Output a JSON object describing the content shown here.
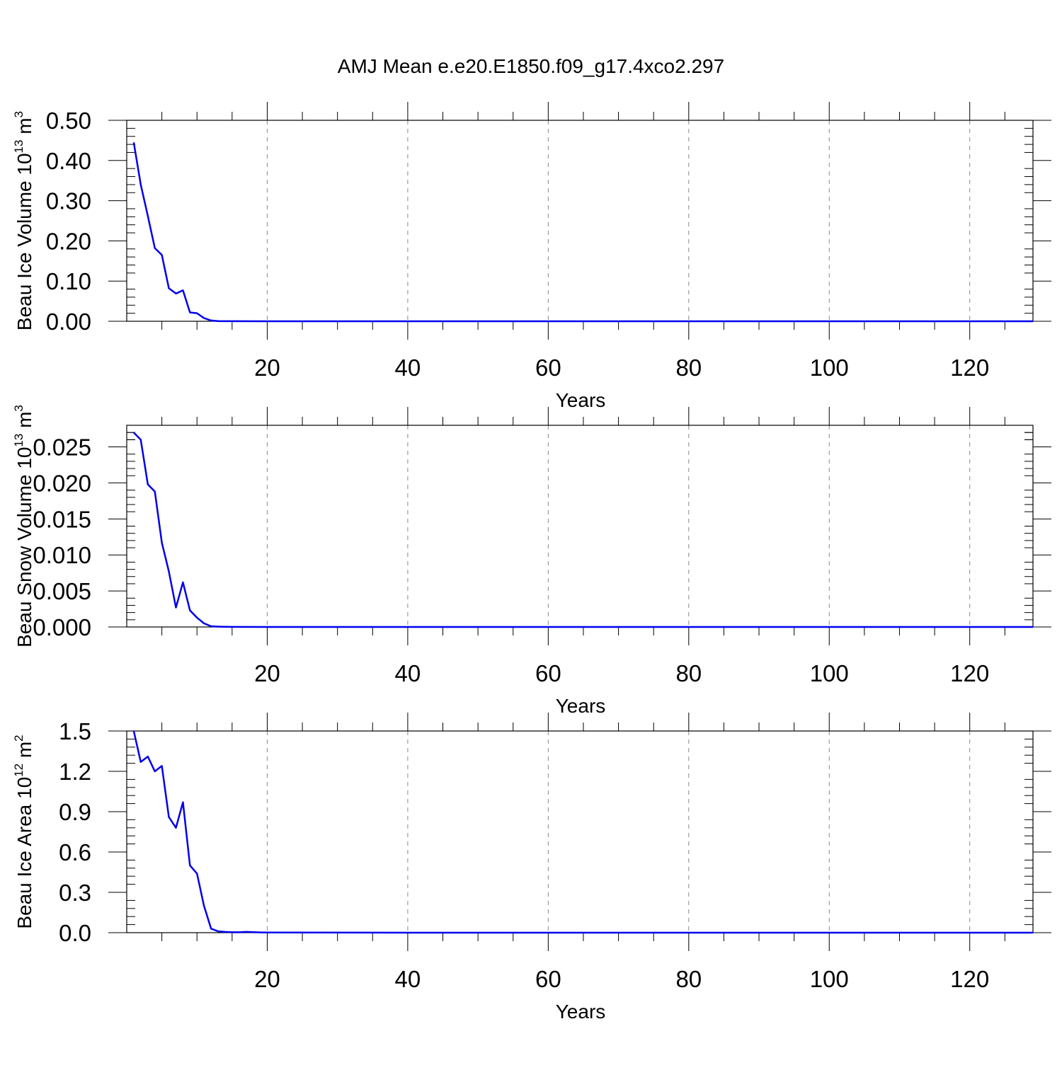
{
  "page_title": "AMJ Mean e.e20.E1850.f09_g17.4xco2.297",
  "chart_data": [
    {
      "type": "line",
      "xlabel": "Years",
      "ylabel_main": "Beau Ice Volume 10",
      "ylabel_exp": "13",
      "ylabel_unit": " m",
      "ylabel_unit_exp": "3",
      "xlim": [
        0,
        129
      ],
      "ylim": [
        0,
        0.5
      ],
      "x_ticks": [
        20,
        40,
        60,
        80,
        100,
        120
      ],
      "y_ticks": [
        "0.00",
        "0.10",
        "0.20",
        "0.30",
        "0.40",
        "0.50"
      ],
      "line_color": "#0000ee",
      "grid": "vertical dashed",
      "series": [
        {
          "x": [
            1,
            2,
            3,
            4,
            5,
            6,
            7,
            8,
            9,
            10,
            11,
            12,
            13,
            14,
            15,
            20,
            40,
            60,
            80,
            100,
            120,
            129
          ],
          "values": [
            0.445,
            0.34,
            0.262,
            0.182,
            0.165,
            0.082,
            0.069,
            0.077,
            0.022,
            0.02,
            0.008,
            0.002,
            0.0005,
            0.0002,
            0.0001,
            0,
            0,
            0,
            0,
            0,
            0,
            0
          ]
        }
      ]
    },
    {
      "type": "line",
      "xlabel": "Years",
      "ylabel_main": "Beau Snow Volume 10",
      "ylabel_exp": "13",
      "ylabel_unit": " m",
      "ylabel_unit_exp": "3",
      "xlim": [
        0,
        129
      ],
      "ylim": [
        0,
        0.028
      ],
      "x_ticks": [
        20,
        40,
        60,
        80,
        100,
        120
      ],
      "y_ticks": [
        "0.000",
        "0.005",
        "0.010",
        "0.015",
        "0.020",
        "0.025"
      ],
      "line_color": "#0000ee",
      "grid": "vertical dashed",
      "series": [
        {
          "x": [
            1,
            2,
            3,
            4,
            5,
            6,
            7,
            8,
            9,
            10,
            11,
            12,
            13,
            14,
            15,
            20,
            40,
            60,
            80,
            100,
            120,
            129
          ],
          "values": [
            0.027,
            0.026,
            0.0198,
            0.0188,
            0.0117,
            0.0077,
            0.0027,
            0.0062,
            0.0023,
            0.0013,
            0.0005,
            0.0001,
            5e-05,
            2e-05,
            1e-05,
            0,
            0,
            0,
            0,
            0,
            0,
            0
          ]
        }
      ]
    },
    {
      "type": "line",
      "xlabel": "Years",
      "ylabel_main": "Beau Ice Area 10",
      "ylabel_exp": "12",
      "ylabel_unit": " m",
      "ylabel_unit_exp": "2",
      "xlim": [
        0,
        129
      ],
      "ylim": [
        0,
        1.5
      ],
      "x_ticks": [
        20,
        40,
        60,
        80,
        100,
        120
      ],
      "y_ticks": [
        "0.0",
        "0.3",
        "0.6",
        "0.9",
        "1.2",
        "1.5"
      ],
      "line_color": "#0000ee",
      "grid": "vertical dashed",
      "series": [
        {
          "x": [
            1,
            2,
            3,
            4,
            5,
            6,
            7,
            8,
            9,
            10,
            11,
            12,
            13,
            14,
            15,
            16,
            17,
            18,
            19,
            20,
            40,
            60,
            80,
            100,
            120,
            129
          ],
          "values": [
            1.5,
            1.27,
            1.31,
            1.2,
            1.24,
            0.86,
            0.78,
            0.97,
            0.5,
            0.44,
            0.2,
            0.03,
            0.01,
            0.006,
            0.003,
            0.003,
            0.006,
            0.004,
            0.002,
            0.001,
            0,
            0,
            0,
            0,
            0,
            0
          ]
        }
      ]
    }
  ]
}
